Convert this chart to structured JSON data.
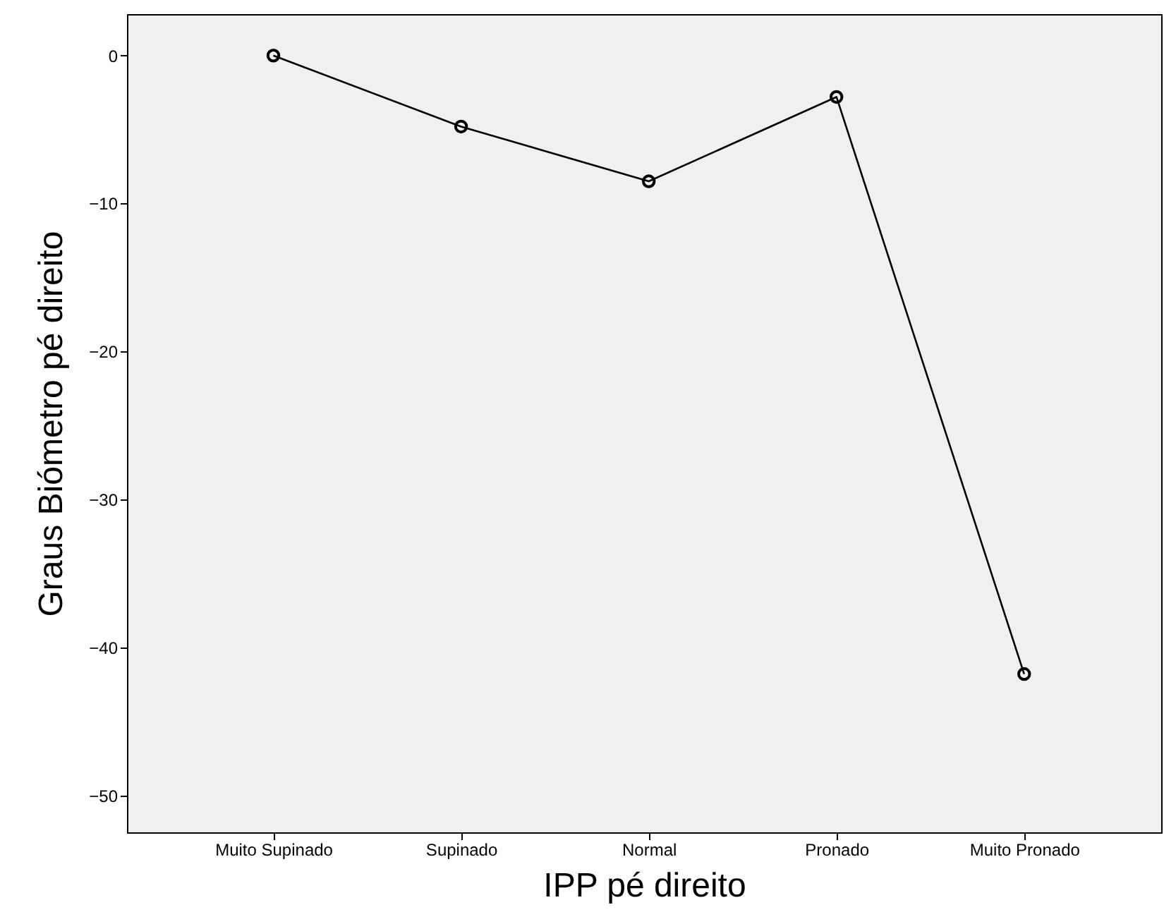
{
  "chart_data": {
    "type": "line",
    "xlabel": "IPP pé direito",
    "ylabel": "Graus Biómetro pé direito",
    "categories": [
      "Muito Supinado",
      "Supinado",
      "Normal",
      "Pronado",
      "Muito Pronado"
    ],
    "series": [
      {
        "color": "#000000",
        "values": [
          0,
          -4.8,
          -8.5,
          -2.8,
          -41.8
        ]
      }
    ],
    "ylim": [
      -52.5,
      2.8
    ],
    "yticks": [
      -50,
      -40,
      -30,
      -20,
      -10,
      0
    ],
    "grid": false,
    "marker": "circle",
    "line_style": "solid"
  }
}
